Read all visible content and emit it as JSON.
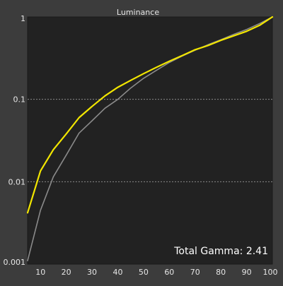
{
  "chart_data": {
    "type": "line",
    "title": "Luminance",
    "xlabel": "",
    "ylabel": "",
    "y_scale": "log",
    "xlim": [
      5,
      100
    ],
    "ylim": [
      0.001,
      1
    ],
    "x_ticks": [
      10,
      20,
      30,
      40,
      50,
      60,
      70,
      80,
      90,
      100
    ],
    "y_ticks": [
      0.001,
      0.01,
      0.1,
      1
    ],
    "y_tick_labels": [
      "0.001",
      "0.01",
      "0.1",
      "1"
    ],
    "grid": "horizontal dashed at 0.1 and 0.01",
    "annotation": "Total Gamma: 2.41",
    "series": [
      {
        "color": "#8a8a8a",
        "x": [
          5,
          10,
          15,
          20,
          25,
          30,
          35,
          40,
          45,
          50,
          55,
          60,
          65,
          70,
          75,
          80,
          85,
          90,
          95,
          100
        ],
        "y": [
          0.0011,
          0.0045,
          0.0115,
          0.021,
          0.039,
          0.055,
          0.078,
          0.1,
          0.137,
          0.18,
          0.225,
          0.28,
          0.335,
          0.395,
          0.46,
          0.53,
          0.615,
          0.705,
          0.83,
          1.0
        ]
      },
      {
        "color": "#f2e600",
        "x": [
          5,
          10,
          15,
          20,
          25,
          30,
          35,
          40,
          45,
          50,
          55,
          60,
          65,
          70,
          75,
          80,
          85,
          90,
          95,
          100
        ],
        "y": [
          0.0042,
          0.0135,
          0.0245,
          0.038,
          0.06,
          0.082,
          0.11,
          0.14,
          0.17,
          0.205,
          0.245,
          0.29,
          0.34,
          0.4,
          0.45,
          0.52,
          0.59,
          0.67,
          0.79,
          1.0
        ]
      }
    ]
  }
}
